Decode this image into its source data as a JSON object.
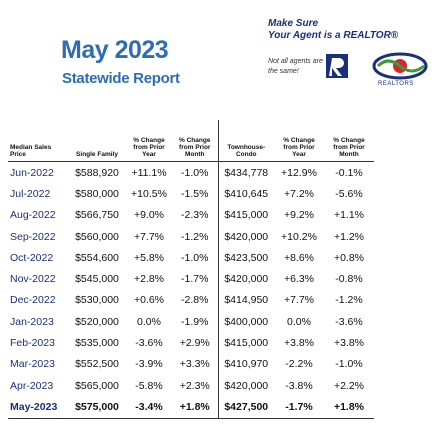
{
  "header": {
    "title": "May 2023",
    "subtitle": "Statewide Report",
    "tagline_1": "Make Sure",
    "tagline_2": "Your Agent is a REALTOR®",
    "note": "Not all agents are the same!",
    "logo_text": "REALTORS"
  },
  "table": {
    "columns": [
      "Median Sales Price",
      "Single Family",
      "% Change from Prior Year",
      "% Change from Prior Month",
      "Townhouse-Condo",
      "% Change from Prior Year",
      "% Change from Prior Month"
    ],
    "rows": [
      [
        "Jun-2022",
        "$588,920",
        "+11.1%",
        "-1.0%",
        "$434,778",
        "+12.9%",
        "-0.1%"
      ],
      [
        "Jul-2022",
        "$580,000",
        "+10.5%",
        "-1.5%",
        "$410,645",
        "+7.2%",
        "-5.6%"
      ],
      [
        "Aug-2022",
        "$566,750",
        "+9.0%",
        "-2.3%",
        "$415,000",
        "+9.2%",
        "+1.1%"
      ],
      [
        "Sep-2022",
        "$560,000",
        "+7.7%",
        "-1.2%",
        "$420,000",
        "+10.2%",
        "+1.2%"
      ],
      [
        "Oct-2022",
        "$554,600",
        "+5.8%",
        "-1.0%",
        "$423,500",
        "+8.6%",
        "+0.8%"
      ],
      [
        "Nov-2022",
        "$545,000",
        "+2.8%",
        "-1.7%",
        "$420,000",
        "+6.3%",
        "-0.8%"
      ],
      [
        "Dec-2022",
        "$530,000",
        "+0.6%",
        "-2.8%",
        "$414,950",
        "+7.7%",
        "-1.2%"
      ],
      [
        "Jan-2023",
        "$520,000",
        "0.0%",
        "-1.9%",
        "$400,000",
        "0.0%",
        "-3.6%"
      ],
      [
        "Feb-2023",
        "$535,000",
        "-3.6%",
        "+2.9%",
        "$415,000",
        "+3.8%",
        "+3.8%"
      ],
      [
        "Mar-2023",
        "$552,500",
        "-3.9%",
        "+3.3%",
        "$410,970",
        "-2.2%",
        "-1.0%"
      ],
      [
        "Apr-2023",
        "$565,000",
        "-5.8%",
        "+2.3%",
        "$420,000",
        "-3.8%",
        "+2.2%"
      ],
      [
        "May-2023",
        "$575,000",
        "-3.4%",
        "+1.8%",
        "$427,500",
        "-1.7%",
        "+1.8%"
      ]
    ]
  }
}
